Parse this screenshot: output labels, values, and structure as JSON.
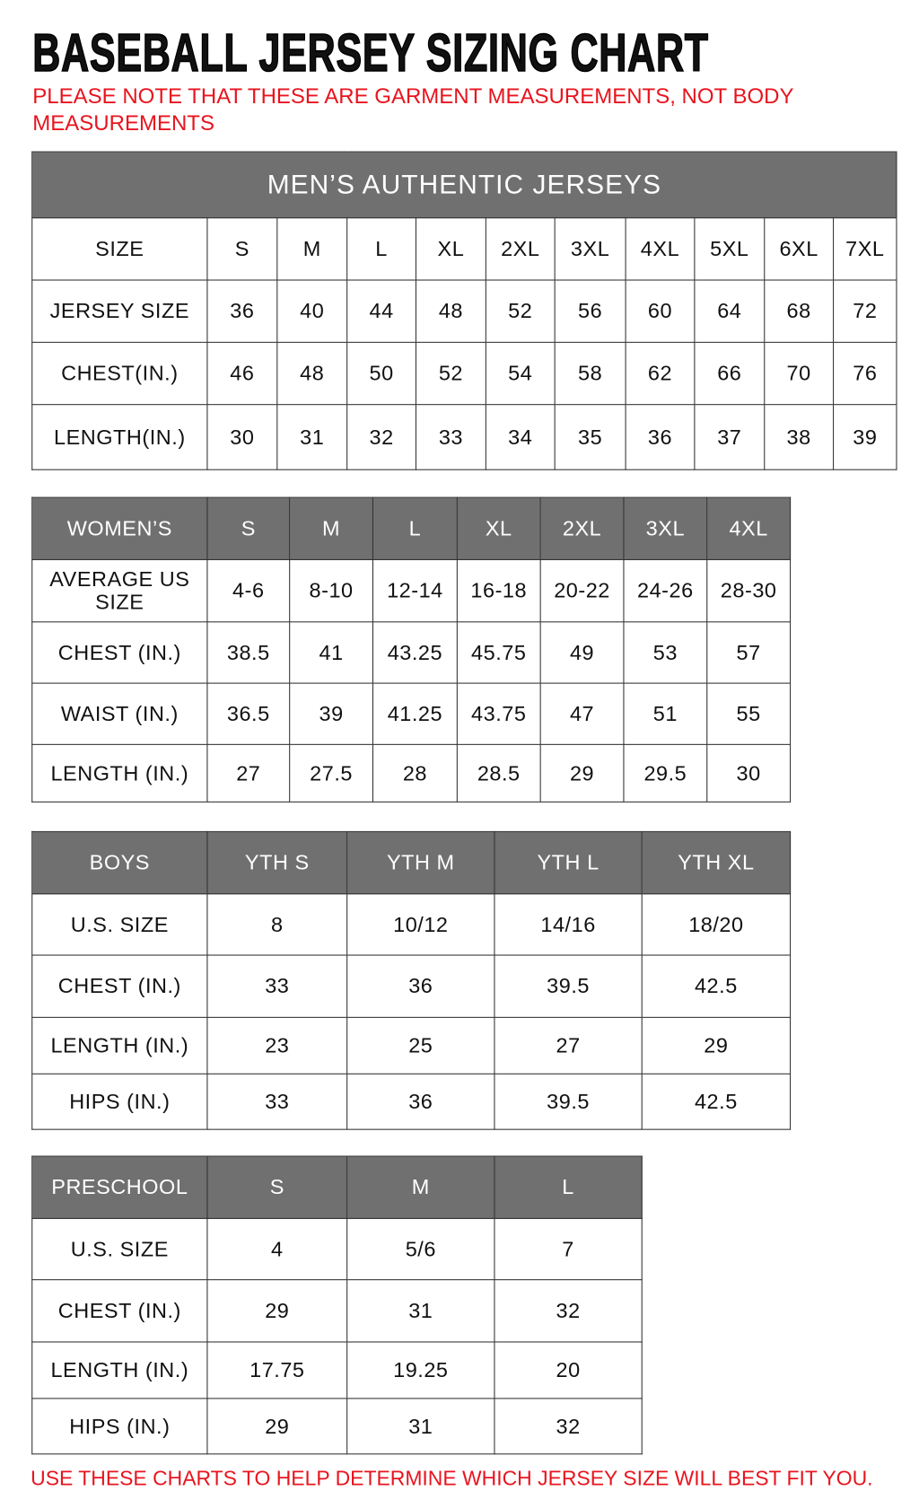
{
  "title": "BASEBALL JERSEY SIZING CHART",
  "note": "PLEASE NOTE THAT THESE ARE GARMENT MEASUREMENTS, NOT BODY MEASUREMENTS",
  "footer": "USE THESE CHARTS TO HELP DETERMINE WHICH JERSEY SIZE WILL BEST FIT YOU.",
  "colors": {
    "header_bg": "#707070",
    "note_red": "#e8141e"
  },
  "mens": {
    "title": "MEN’S AUTHENTIC JERSEYS",
    "rows": [
      [
        "SIZE",
        "S",
        "M",
        "L",
        "XL",
        "2XL",
        "3XL",
        "4XL",
        "5XL",
        "6XL",
        "7XL"
      ],
      [
        "JERSEY SIZE",
        "36",
        "40",
        "44",
        "48",
        "52",
        "56",
        "60",
        "64",
        "68",
        "72"
      ],
      [
        "CHEST(IN.)",
        "46",
        "48",
        "50",
        "52",
        "54",
        "58",
        "62",
        "66",
        "70",
        "76"
      ],
      [
        "LENGTH(IN.)",
        "30",
        "31",
        "32",
        "33",
        "34",
        "35",
        "36",
        "37",
        "38",
        "39"
      ]
    ]
  },
  "womens": {
    "header": [
      "WOMEN’S",
      "S",
      "M",
      "L",
      "XL",
      "2XL",
      "3XL",
      "4XL"
    ],
    "rows": [
      [
        "AVERAGE US SIZE",
        "4-6",
        "8-10",
        "12-14",
        "16-18",
        "20-22",
        "24-26",
        "28-30"
      ],
      [
        "CHEST (IN.)",
        "38.5",
        "41",
        "43.25",
        "45.75",
        "49",
        "53",
        "57"
      ],
      [
        "WAIST (IN.)",
        "36.5",
        "39",
        "41.25",
        "43.75",
        "47",
        "51",
        "55"
      ],
      [
        "LENGTH (IN.)",
        "27",
        "27.5",
        "28",
        "28.5",
        "29",
        "29.5",
        "30"
      ]
    ]
  },
  "boys": {
    "header": [
      "BOYS",
      "YTH S",
      "YTH M",
      "YTH L",
      "YTH XL"
    ],
    "rows": [
      [
        "U.S. SIZE",
        "8",
        "10/12",
        "14/16",
        "18/20"
      ],
      [
        "CHEST (IN.)",
        "33",
        "36",
        "39.5",
        "42.5"
      ],
      [
        "LENGTH (IN.)",
        "23",
        "25",
        "27",
        "29"
      ],
      [
        "HIPS (IN.)",
        "33",
        "36",
        "39.5",
        "42.5"
      ]
    ]
  },
  "preschool": {
    "header": [
      "PRESCHOOL",
      "S",
      "M",
      "L"
    ],
    "rows": [
      [
        "U.S. SIZE",
        "4",
        "5/6",
        "7"
      ],
      [
        "CHEST (IN.)",
        "29",
        "31",
        "32"
      ],
      [
        "LENGTH (IN.)",
        "17.75",
        "19.25",
        "20"
      ],
      [
        "HIPS (IN.)",
        "29",
        "31",
        "32"
      ]
    ]
  }
}
